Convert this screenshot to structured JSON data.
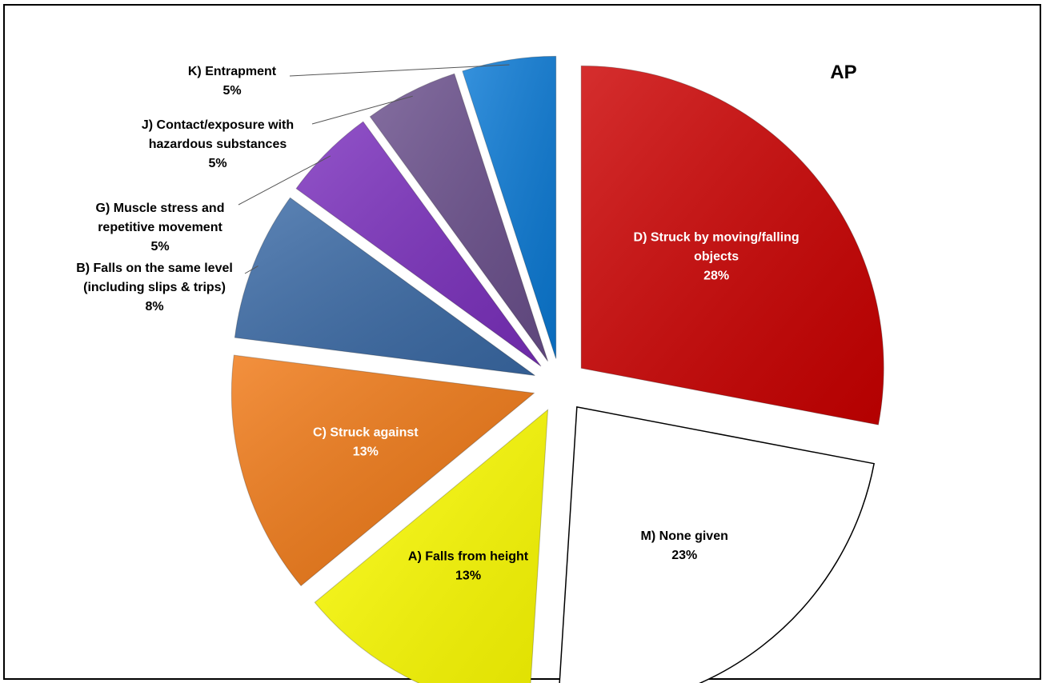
{
  "chart_data": {
    "type": "pie",
    "title": "AP",
    "exploded": true,
    "slices": [
      {
        "id": "D",
        "label_lines": [
          "D) Struck by moving/falling",
          "objects"
        ],
        "pct_label": "28%",
        "value": 28,
        "color": "#cc0000",
        "label_color": "#ffffff",
        "label_inside": true
      },
      {
        "id": "M",
        "label_lines": [
          "M) None given"
        ],
        "pct_label": "23%",
        "value": 23,
        "color": "#ffffff",
        "label_color": "#000000",
        "label_inside": true
      },
      {
        "id": "A",
        "label_lines": [
          "A) Falls from height"
        ],
        "pct_label": "13%",
        "value": 13,
        "color": "#ffff00",
        "label_color": "#000000",
        "label_inside": true
      },
      {
        "id": "C",
        "label_lines": [
          "C) Struck against"
        ],
        "pct_label": "13%",
        "value": 13,
        "color": "#f07814",
        "label_color": "#ffffff",
        "label_inside": true
      },
      {
        "id": "B",
        "label_lines": [
          "B) Falls on the same level",
          "(including slips & trips)"
        ],
        "pct_label": "8%",
        "value": 8,
        "color": "#3a6aa6",
        "label_color": "#000000",
        "label_inside": false
      },
      {
        "id": "G",
        "label_lines": [
          "G) Muscle stress and",
          "repetitive movement"
        ],
        "pct_label": "5%",
        "value": 5,
        "color": "#7b2fbe",
        "label_color": "#000000",
        "label_inside": false
      },
      {
        "id": "J",
        "label_lines": [
          "J) Contact/exposure with",
          "hazardous substances"
        ],
        "pct_label": "5%",
        "value": 5,
        "color": "#6a4f8c",
        "label_color": "#000000",
        "label_inside": false
      },
      {
        "id": "K",
        "label_lines": [
          "K) Entrapment"
        ],
        "pct_label": "5%",
        "value": 5,
        "color": "#0a7ad6",
        "label_color": "#000000",
        "label_inside": false
      }
    ]
  }
}
